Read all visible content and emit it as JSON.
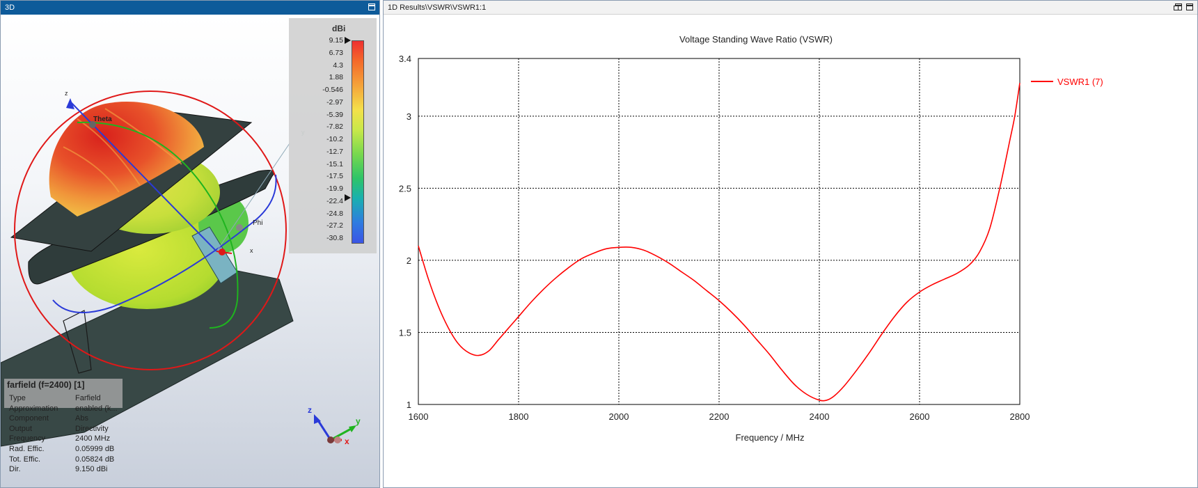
{
  "window3d": {
    "title": "3D"
  },
  "window1d": {
    "title": "1D Results\\VSWR\\VSWR1:1"
  },
  "scene": {
    "axis_labels": {
      "z": "z",
      "y": "y",
      "x": "x",
      "theta": "Theta",
      "phi": "Phi"
    },
    "triad": {
      "z": "z",
      "y": "y",
      "x": "x"
    }
  },
  "colorbar": {
    "unit": "dBi",
    "ticks": [
      "9.15",
      "6.73",
      "4.3",
      "1.88",
      "-0.546",
      "-2.97",
      "-5.39",
      "-7.82",
      "-10.2",
      "-12.7",
      "-15.1",
      "-17.5",
      "-19.9",
      "-22.4",
      "-24.8",
      "-27.2",
      "-30.8"
    ]
  },
  "info": {
    "title": "farfield (f=2400) [1]",
    "rows": [
      {
        "key": "Type",
        "value": "Farfield"
      },
      {
        "key": "Approximation",
        "value": "enabled (k..."
      },
      {
        "key": "Component",
        "value": "Abs"
      },
      {
        "key": "Output",
        "value": "Directivity"
      },
      {
        "key": "Frequency",
        "value": "2400 MHz"
      },
      {
        "key": "Rad. Effic.",
        "value": "0.05999 dB"
      },
      {
        "key": "Tot. Effic.",
        "value": "0.05824 dB"
      },
      {
        "key": "Dir.",
        "value": "9.150 dBi"
      }
    ]
  },
  "chart_data": {
    "type": "line",
    "title": "Voltage Standing Wave Ratio (VSWR)",
    "xlabel": "Frequency / MHz",
    "ylabel": "",
    "xlim": [
      1600,
      2800
    ],
    "ylim": [
      1,
      3.4
    ],
    "xticks": [
      1600,
      1800,
      2000,
      2200,
      2400,
      2600,
      2800
    ],
    "yticks": [
      1,
      1.5,
      2,
      2.5,
      3,
      3.4
    ],
    "grid": true,
    "legend": "top-right",
    "series": [
      {
        "name": "VSWR1 (7)",
        "color": "#ff0000",
        "x": [
          1600,
          1620,
          1640,
          1660,
          1680,
          1700,
          1720,
          1740,
          1760,
          1780,
          1800,
          1825,
          1850,
          1875,
          1900,
          1925,
          1950,
          1975,
          2000,
          2025,
          2050,
          2075,
          2100,
          2125,
          2150,
          2175,
          2200,
          2225,
          2250,
          2275,
          2300,
          2325,
          2350,
          2375,
          2400,
          2415,
          2430,
          2450,
          2475,
          2500,
          2525,
          2550,
          2575,
          2600,
          2625,
          2650,
          2675,
          2700,
          2720,
          2740,
          2760,
          2780,
          2790,
          2800
        ],
        "y": [
          2.1,
          1.87,
          1.68,
          1.53,
          1.42,
          1.36,
          1.34,
          1.37,
          1.45,
          1.53,
          1.61,
          1.71,
          1.8,
          1.88,
          1.95,
          2.01,
          2.05,
          2.08,
          2.09,
          2.09,
          2.07,
          2.03,
          1.98,
          1.92,
          1.86,
          1.79,
          1.72,
          1.64,
          1.55,
          1.45,
          1.35,
          1.24,
          1.14,
          1.07,
          1.03,
          1.03,
          1.06,
          1.13,
          1.24,
          1.36,
          1.49,
          1.61,
          1.71,
          1.78,
          1.83,
          1.87,
          1.91,
          1.97,
          2.06,
          2.22,
          2.5,
          2.83,
          3.0,
          3.23
        ]
      }
    ]
  }
}
